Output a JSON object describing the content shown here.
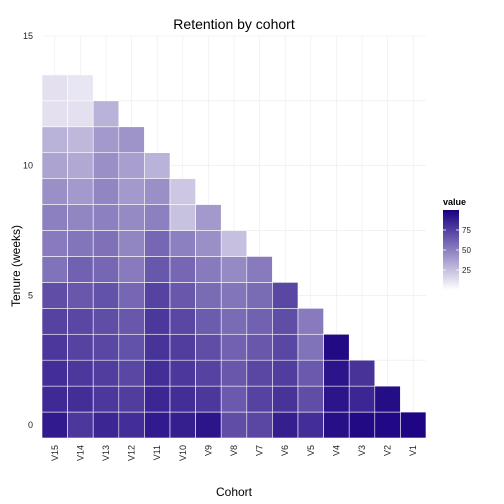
{
  "chart_data": {
    "type": "heatmap",
    "title": "Retention by cohort",
    "xlabel": "Cohort",
    "ylabel": "Tenure (weeks)",
    "x_categories": [
      "V15",
      "V14",
      "V13",
      "V12",
      "V11",
      "V10",
      "V9",
      "V8",
      "V7",
      "V6",
      "V5",
      "V4",
      "V3",
      "V2",
      "V1"
    ],
    "y_ticks": [
      0,
      5,
      10,
      15
    ],
    "ylim": [
      -0.5,
      15
    ],
    "grid": true,
    "legend": {
      "title": "value",
      "ticks": [
        25,
        50,
        75
      ],
      "range": [
        0,
        100
      ],
      "low_color": "#ffffff",
      "high_color": "#1a0080",
      "position": "right"
    },
    "values": [
      [
        90,
        78,
        85,
        82,
        90,
        88,
        92,
        70,
        72,
        88,
        82,
        94,
        96,
        97,
        98
      ],
      [
        84,
        82,
        78,
        76,
        85,
        82,
        78,
        65,
        74,
        80,
        70,
        92,
        85,
        95
      ],
      [
        82,
        78,
        76,
        72,
        82,
        78,
        74,
        66,
        72,
        76,
        65,
        92,
        80
      ],
      [
        78,
        74,
        72,
        68,
        80,
        76,
        70,
        62,
        66,
        72,
        55,
        96
      ],
      [
        74,
        72,
        70,
        66,
        78,
        72,
        64,
        58,
        62,
        70,
        52
      ],
      [
        70,
        66,
        68,
        60,
        74,
        66,
        58,
        54,
        58,
        72
      ],
      [
        55,
        62,
        60,
        52,
        66,
        60,
        52,
        46,
        52
      ],
      [
        52,
        54,
        56,
        48,
        60,
        50,
        44,
        25
      ],
      [
        50,
        48,
        50,
        46,
        50,
        24,
        40
      ],
      [
        44,
        40,
        48,
        40,
        44,
        22
      ],
      [
        36,
        34,
        44,
        38,
        30
      ],
      [
        30,
        28,
        40,
        42
      ],
      [
        12,
        12,
        30
      ],
      [
        12,
        10
      ]
    ]
  }
}
